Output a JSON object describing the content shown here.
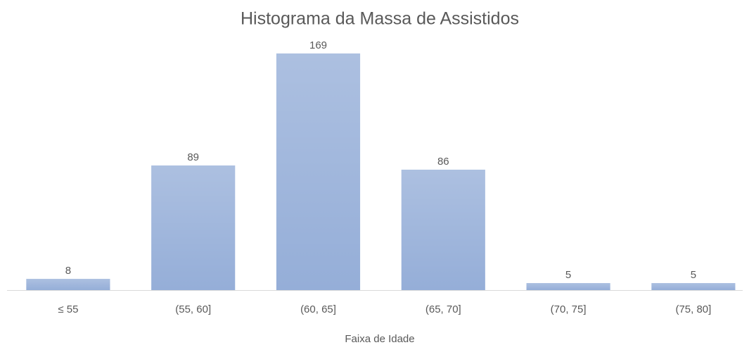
{
  "chart_data": {
    "type": "bar",
    "title": "Histograma  da Massa  de Assistidos",
    "x_label": "Faixa de Idade",
    "categories": [
      "≤ 55",
      "(55, 60]",
      "(60, 65]",
      "(65, 70]",
      "(70, 75]",
      "(75, 80]"
    ],
    "values": [
      8,
      89,
      169,
      86,
      5,
      5
    ],
    "color": "#95aed8",
    "ylim": [
      0,
      175
    ]
  }
}
